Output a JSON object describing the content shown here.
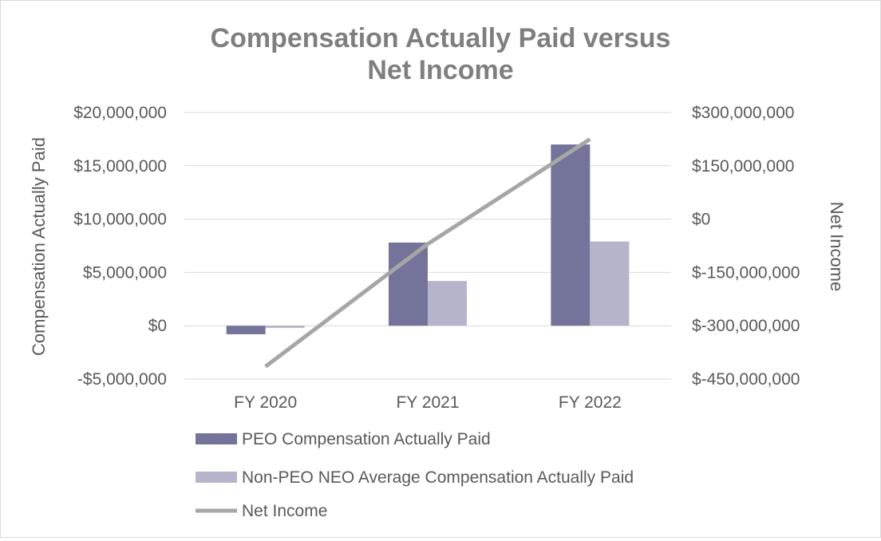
{
  "chart_data": {
    "type": "bar",
    "title": "Compensation Actually Paid versus Net Income",
    "title_lines": [
      "Compensation Actually Paid versus",
      "Net Income"
    ],
    "categories": [
      "FY 2020",
      "FY 2021",
      "FY 2022"
    ],
    "y_left": {
      "label": "Compensation Actually Paid",
      "lim": [
        -5000000,
        20000000
      ],
      "ticks": [
        20000000,
        15000000,
        10000000,
        5000000,
        0,
        -5000000
      ],
      "tick_labels": [
        "$20,000,000",
        "$15,000,000",
        "$10,000,000",
        "$5,000,000",
        "$0",
        "-$5,000,000"
      ]
    },
    "y_right": {
      "label": "Net Income",
      "lim": [
        -450000000,
        300000000
      ],
      "ticks": [
        300000000,
        150000000,
        0,
        -150000000,
        -300000000,
        -450000000
      ],
      "tick_labels": [
        "$300,000,000",
        "$150,000,000",
        "$0",
        "$-150,000,000",
        "$-300,000,000",
        "$-450,000,000"
      ]
    },
    "series": [
      {
        "name": "PEO Compensation Actually Paid",
        "type": "bar",
        "axis": "left",
        "color": "#74749a",
        "values": [
          -800000,
          7800000,
          17000000
        ]
      },
      {
        "name": "Non-PEO NEO Average Compensation Actually Paid",
        "type": "bar",
        "axis": "left",
        "color": "#b5b4ca",
        "values": [
          -200000,
          4200000,
          7900000
        ]
      },
      {
        "name": "Net Income",
        "type": "line",
        "axis": "right",
        "color": "#a6a6a6",
        "values": [
          -415000000,
          -70000000,
          225000000
        ]
      }
    ],
    "grid": true,
    "legend_position": "bottom"
  }
}
